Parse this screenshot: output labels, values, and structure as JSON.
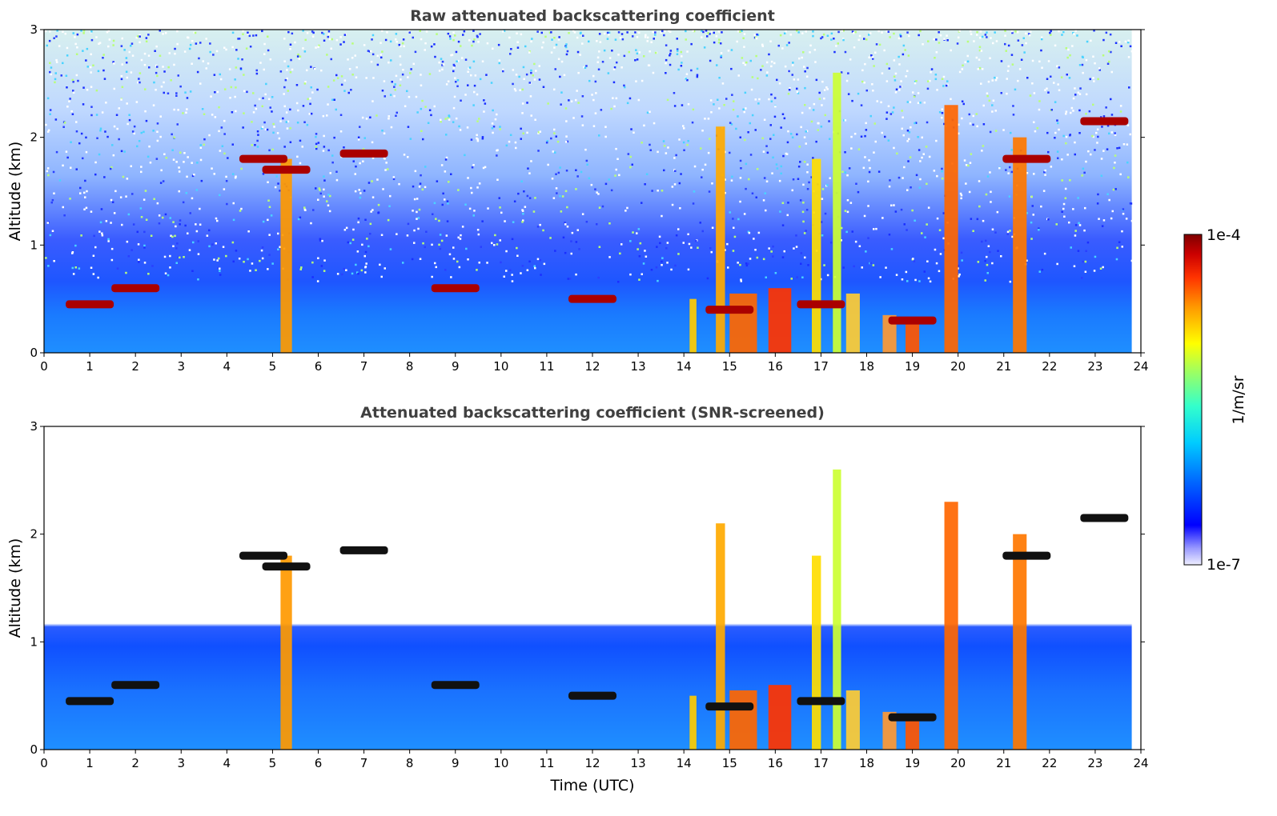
{
  "chart_data": [
    {
      "type": "heatmap",
      "title": "Raw attenuated backscattering coefficient",
      "xlabel": "",
      "ylabel": "Altitude (km)",
      "xlim": [
        0,
        24
      ],
      "ylim": [
        0,
        3
      ],
      "xticks": [
        "0",
        "1",
        "2",
        "3",
        "4",
        "5",
        "6",
        "7",
        "8",
        "9",
        "10",
        "11",
        "12",
        "13",
        "14",
        "15",
        "16",
        "17",
        "18",
        "19",
        "20",
        "21",
        "22",
        "23",
        "24"
      ],
      "yticks": [
        "0",
        "1",
        "2",
        "3"
      ],
      "colormap": "jet",
      "data_end_hour": 23.8,
      "cloud_base_km": [
        {
          "hour": 1.0,
          "km": 0.45
        },
        {
          "hour": 2.0,
          "km": 0.6
        },
        {
          "hour": 4.8,
          "km": 1.8
        },
        {
          "hour": 5.3,
          "km": 1.7
        },
        {
          "hour": 7.0,
          "km": 1.85
        },
        {
          "hour": 9.0,
          "km": 0.6
        },
        {
          "hour": 12.0,
          "km": 0.5
        },
        {
          "hour": 15.0,
          "km": 0.4
        },
        {
          "hour": 17.0,
          "km": 0.45
        },
        {
          "hour": 19.0,
          "km": 0.3
        },
        {
          "hour": 21.5,
          "km": 1.8
        },
        {
          "hour": 23.2,
          "km": 2.15
        }
      ]
    },
    {
      "type": "heatmap",
      "title": "Attenuated backscattering coefficient (SNR-screened)",
      "xlabel": "Time (UTC)",
      "ylabel": "Altitude (km)",
      "xlim": [
        0,
        24
      ],
      "ylim": [
        0,
        3
      ],
      "xticks": [
        "0",
        "1",
        "2",
        "3",
        "4",
        "5",
        "6",
        "7",
        "8",
        "9",
        "10",
        "11",
        "12",
        "13",
        "14",
        "15",
        "16",
        "17",
        "18",
        "19",
        "20",
        "21",
        "22",
        "23",
        "24"
      ],
      "yticks": [
        "0",
        "1",
        "2",
        "3"
      ],
      "colormap": "jet",
      "data_end_hour": 23.8
    }
  ],
  "colorbar": {
    "label": "1/m/sr",
    "max_label": "1e-4",
    "min_label": "1e-7",
    "colors": [
      "#eeeeff",
      "#9999ff",
      "#0000ff",
      "#0066ff",
      "#00ccff",
      "#33ffcc",
      "#99ff66",
      "#ffff00",
      "#ff9900",
      "#ff3300",
      "#cc0000",
      "#7f0000"
    ]
  }
}
